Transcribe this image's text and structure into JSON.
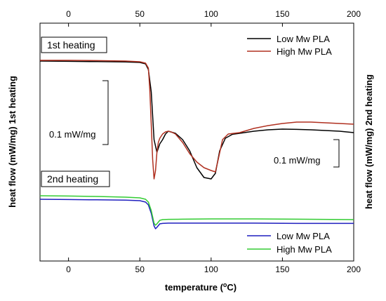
{
  "chart_data": {
    "type": "line",
    "xlabel_main": "temperature (",
    "xlabel_super": "o",
    "xlabel_tail": "C)",
    "ylabel_left": "heat flow (mW/mg) 1st heating",
    "ylabel_right": "heat flow (mW/mg) 2nd heating",
    "xlim": [
      -20,
      200
    ],
    "x_ticks": [
      "0",
      "50",
      "100",
      "150",
      "200"
    ],
    "x_tick_values": [
      0,
      50,
      100,
      150,
      200
    ],
    "panels": [
      {
        "label": "1st heating",
        "legend_position": "top-right",
        "series": [
          {
            "name": "Low Mw PLA",
            "color": "#000000",
            "x": [
              -20,
              0,
              20,
              40,
              50,
              54,
              56,
              58,
              60,
              62,
              64,
              66,
              68,
              70,
              75,
              80,
              85,
              90,
              95,
              100,
              103,
              106,
              110,
              115,
              120,
              130,
              140,
              150,
              160,
              170,
              180,
              190,
              200
            ],
            "y": [
              0.0,
              -0.002,
              -0.004,
              -0.006,
              -0.01,
              -0.02,
              -0.06,
              -0.22,
              -0.56,
              -0.65,
              -0.59,
              -0.56,
              -0.52,
              -0.5,
              -0.515,
              -0.56,
              -0.64,
              -0.76,
              -0.83,
              -0.84,
              -0.8,
              -0.64,
              -0.55,
              -0.522,
              -0.515,
              -0.5,
              -0.49,
              -0.485,
              -0.487,
              -0.49,
              -0.495,
              -0.5,
              -0.51
            ]
          },
          {
            "name": "High Mw PLA",
            "color": "#b03020",
            "x": [
              -20,
              0,
              20,
              40,
              50,
              54,
              56,
              57,
              58,
              59,
              60,
              61,
              62,
              63,
              64,
              66,
              68,
              70,
              72,
              75,
              80,
              85,
              90,
              95,
              100,
              103,
              105,
              108,
              112,
              120,
              130,
              140,
              150,
              160,
              170,
              180,
              190,
              200
            ],
            "y": [
              0.005,
              0.005,
              0.003,
              0.0,
              -0.005,
              -0.015,
              -0.05,
              -0.2,
              -0.45,
              -0.7,
              -0.84,
              -0.78,
              -0.65,
              -0.58,
              -0.55,
              -0.52,
              -0.505,
              -0.5,
              -0.505,
              -0.52,
              -0.58,
              -0.66,
              -0.72,
              -0.76,
              -0.78,
              -0.79,
              -0.7,
              -0.56,
              -0.52,
              -0.51,
              -0.48,
              -0.46,
              -0.445,
              -0.435,
              -0.435,
              -0.44,
              -0.445,
              -0.45
            ]
          }
        ],
        "scale_bar_label": "0.1 mW/mg"
      },
      {
        "label": "2nd heating",
        "legend_position": "bottom-right",
        "series": [
          {
            "name": "Low Mw PLA",
            "color": "#1f1fbf",
            "x": [
              -20,
              0,
              20,
              40,
              50,
              54,
              56,
              58,
              60,
              61,
              62,
              64,
              66,
              70,
              80,
              100,
              130,
              160,
              200
            ],
            "y": [
              0.0,
              -0.002,
              -0.004,
              -0.006,
              -0.01,
              -0.02,
              -0.04,
              -0.1,
              -0.19,
              -0.21,
              -0.2,
              -0.175,
              -0.172,
              -0.17,
              -0.17,
              -0.17,
              -0.17,
              -0.172,
              -0.172
            ]
          },
          {
            "name": "High Mw PLA",
            "color": "#33cc33",
            "x": [
              -20,
              0,
              20,
              40,
              50,
              54,
              56,
              58,
              60,
              61,
              62,
              64,
              66,
              70,
              80,
              100,
              130,
              160,
              200
            ],
            "y": [
              0.025,
              0.023,
              0.02,
              0.015,
              0.01,
              0.0,
              -0.02,
              -0.08,
              -0.17,
              -0.185,
              -0.175,
              -0.15,
              -0.145,
              -0.143,
              -0.142,
              -0.14,
              -0.14,
              -0.142,
              -0.145
            ]
          }
        ],
        "scale_bar_label": "0.1 mW/mg"
      }
    ],
    "grid": false
  }
}
